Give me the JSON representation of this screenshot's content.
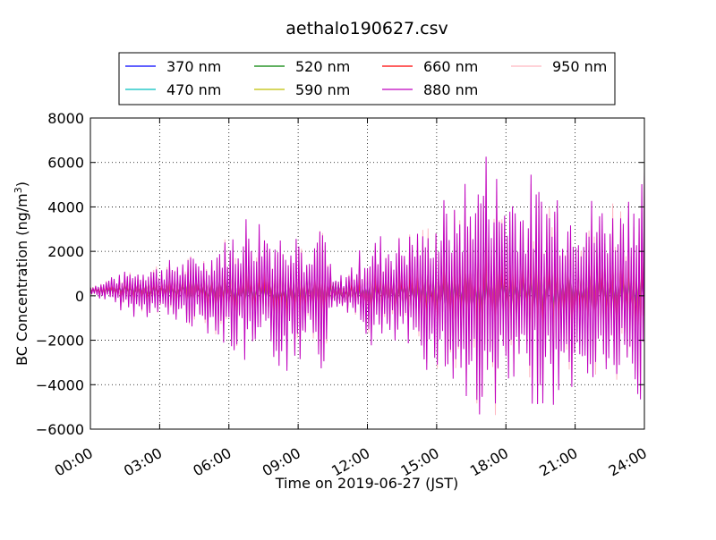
{
  "chart_data": {
    "type": "line",
    "title": "aethalo190627.csv",
    "xlabel": "Time on 2019-06-27 (JST)",
    "ylabel": "BC Concentration (ng/m³)",
    "ylabel_main": "BC Concentration (ng/m",
    "ylabel_sup": "3",
    "ylabel_end": ")",
    "xlim": [
      0,
      24
    ],
    "ylim": [
      -6000,
      8000
    ],
    "x_ticks": [
      0,
      3,
      6,
      9,
      12,
      15,
      18,
      21,
      24
    ],
    "x_tick_labels": [
      "00:00",
      "03:00",
      "06:00",
      "09:00",
      "12:00",
      "15:00",
      "18:00",
      "21:00",
      "24:00"
    ],
    "y_ticks": [
      -6000,
      -4000,
      -2000,
      0,
      2000,
      4000,
      6000,
      8000
    ],
    "y_tick_labels": [
      "−6000",
      "−4000",
      "−2000",
      "0",
      "2000",
      "4000",
      "6000",
      "8000"
    ],
    "x_unit": "hours",
    "grid": true,
    "legend_position": "top-center, above plot",
    "series": [
      {
        "name": "370 nm",
        "color": "#0000ff"
      },
      {
        "name": "470 nm",
        "color": "#00bfbf"
      },
      {
        "name": "520 nm",
        "color": "#008000"
      },
      {
        "name": "590 nm",
        "color": "#bfbf00"
      },
      {
        "name": "660 nm",
        "color": "#ff0000"
      },
      {
        "name": "880 nm",
        "color": "#bf00bf"
      },
      {
        "name": "950 nm",
        "color": "#ffb6c1"
      }
    ],
    "envelope": {
      "x": [
        0,
        0.5,
        1,
        2,
        3,
        4,
        5,
        6,
        6.5,
        7,
        8,
        9,
        9.5,
        10,
        10.5,
        11,
        12,
        13,
        14,
        15,
        16,
        17,
        18,
        19,
        20,
        21,
        22,
        23,
        24
      ],
      "amp_880": [
        200,
        400,
        700,
        1100,
        1300,
        1500,
        1800,
        2600,
        3200,
        3300,
        3100,
        3600,
        1200,
        4000,
        600,
        800,
        2200,
        2500,
        2800,
        3500,
        4500,
        6000,
        5000,
        4700,
        5200,
        4600,
        4200,
        4600,
        5500
      ],
      "amp_370": [
        150,
        200,
        300,
        500,
        500,
        600,
        700,
        900,
        900,
        900,
        900,
        900,
        600,
        800,
        500,
        500,
        800,
        900,
        1000,
        1200,
        1400,
        1600,
        1500,
        1500,
        1500,
        1500,
        1500,
        1500,
        1500
      ]
    }
  }
}
